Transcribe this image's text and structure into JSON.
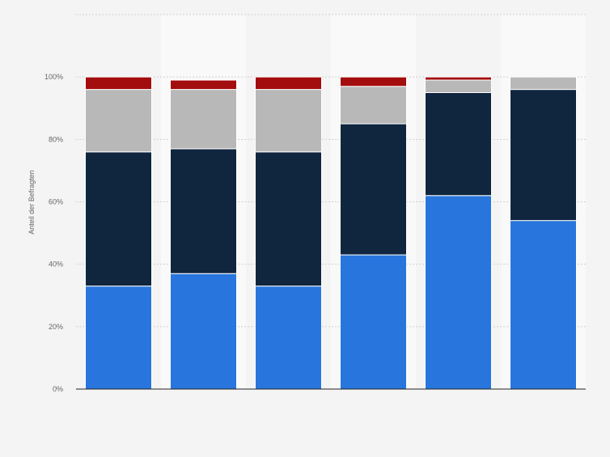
{
  "chart_data": {
    "type": "bar",
    "stacked": true,
    "categories": [
      "",
      "",
      "",
      "",
      "",
      ""
    ],
    "series": [
      {
        "color": "#2876dd",
        "values": [
          33,
          37,
          33,
          43,
          62,
          54
        ]
      },
      {
        "color": "#10263f",
        "values": [
          43,
          40,
          43,
          42,
          33,
          42
        ]
      },
      {
        "color": "#b8b8b8",
        "values": [
          20,
          19,
          20,
          12,
          4,
          4
        ]
      },
      {
        "color": "#a30d0d",
        "values": [
          4,
          3,
          4,
          3,
          1,
          0
        ]
      }
    ],
    "ylabel": "Anteil der Befragten",
    "ylim": [
      0,
      120
    ],
    "yticks": [
      0,
      20,
      40,
      60,
      80,
      100
    ],
    "ytick_labels": [
      "0%",
      "20%",
      "40%",
      "60%",
      "80%",
      "100%"
    ],
    "grid": true,
    "legend": false,
    "colors": {
      "background": "#f4f4f4",
      "column_band": "#f9f9f9",
      "grid": "#cfcfcf",
      "axis": "#222222",
      "tick_text": "#666666"
    }
  }
}
